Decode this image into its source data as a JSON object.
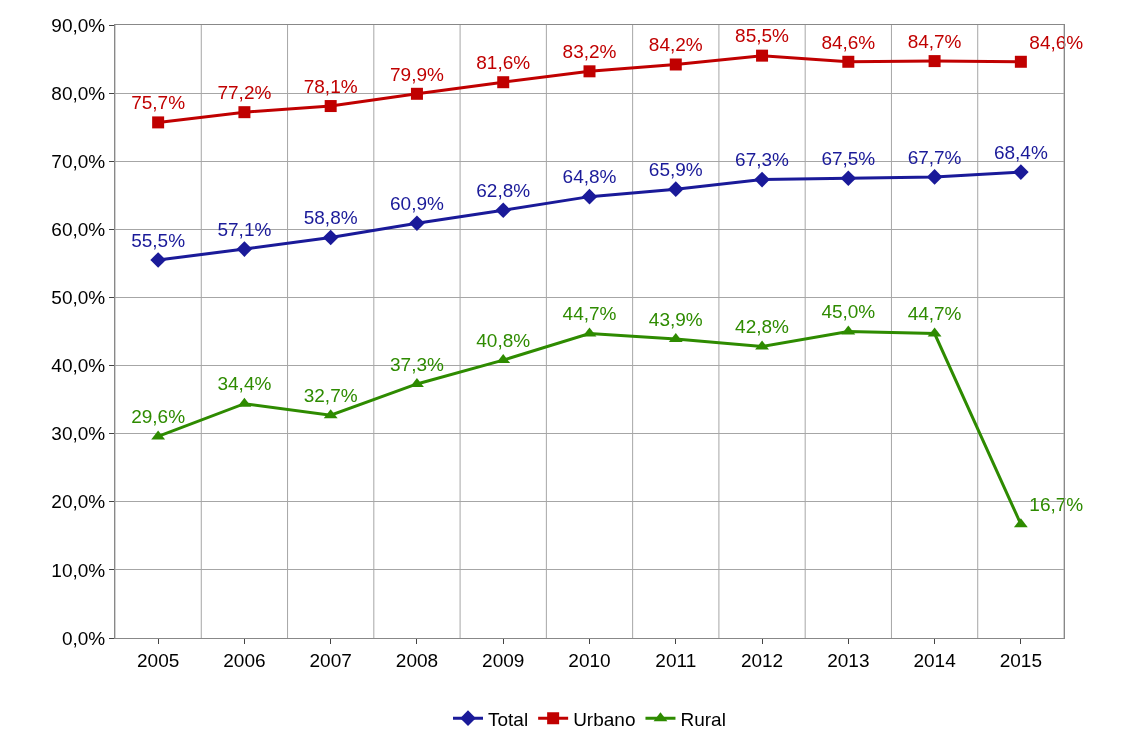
{
  "chart_data": {
    "type": "line",
    "categories": [
      "2005",
      "2006",
      "2007",
      "2008",
      "2009",
      "2010",
      "2011",
      "2012",
      "2013",
      "2014",
      "2015"
    ],
    "series": [
      {
        "name": "Total",
        "color": "#1a1a99",
        "marker": "diamond",
        "values": [
          55.5,
          57.1,
          58.8,
          60.9,
          62.8,
          64.8,
          65.9,
          67.3,
          67.5,
          67.7,
          68.4
        ],
        "value_labels": [
          "55,5%",
          "57,1%",
          "58,8%",
          "60,9%",
          "62,8%",
          "64,8%",
          "65,9%",
          "67,3%",
          "67,5%",
          "67,7%",
          "68,4%"
        ]
      },
      {
        "name": "Urbano",
        "color": "#c00000",
        "marker": "square",
        "values": [
          75.7,
          77.2,
          78.1,
          79.9,
          81.6,
          83.2,
          84.2,
          85.5,
          84.6,
          84.7,
          84.6
        ],
        "value_labels": [
          "75,7%",
          "77,2%",
          "78,1%",
          "79,9%",
          "81,6%",
          "83,2%",
          "84,2%",
          "85,5%",
          "84,6%",
          "84,7%",
          "84,6%"
        ]
      },
      {
        "name": "Rural",
        "color": "#2e8b00",
        "marker": "triangle",
        "values": [
          29.6,
          34.4,
          32.7,
          37.3,
          40.8,
          44.7,
          43.9,
          42.8,
          45.0,
          44.7,
          16.7
        ],
        "value_labels": [
          "29,6%",
          "34,4%",
          "32,7%",
          "37,3%",
          "40,8%",
          "44,7%",
          "43,9%",
          "42,8%",
          "45,0%",
          "44,7%",
          "16,7%"
        ]
      }
    ],
    "ylim": [
      0,
      90
    ],
    "yticks": [
      {
        "value": 0,
        "label": "0,0%"
      },
      {
        "value": 10,
        "label": "10,0%"
      },
      {
        "value": 20,
        "label": "20,0%"
      },
      {
        "value": 30,
        "label": "30,0%"
      },
      {
        "value": 40,
        "label": "40,0%"
      },
      {
        "value": 50,
        "label": "50,0%"
      },
      {
        "value": 60,
        "label": "60,0%"
      },
      {
        "value": 70,
        "label": "70,0%"
      },
      {
        "value": 80,
        "label": "80,0%"
      },
      {
        "value": 90,
        "label": "90,0%"
      }
    ],
    "grid": true,
    "legend": "bottom",
    "line_style": "solid"
  }
}
